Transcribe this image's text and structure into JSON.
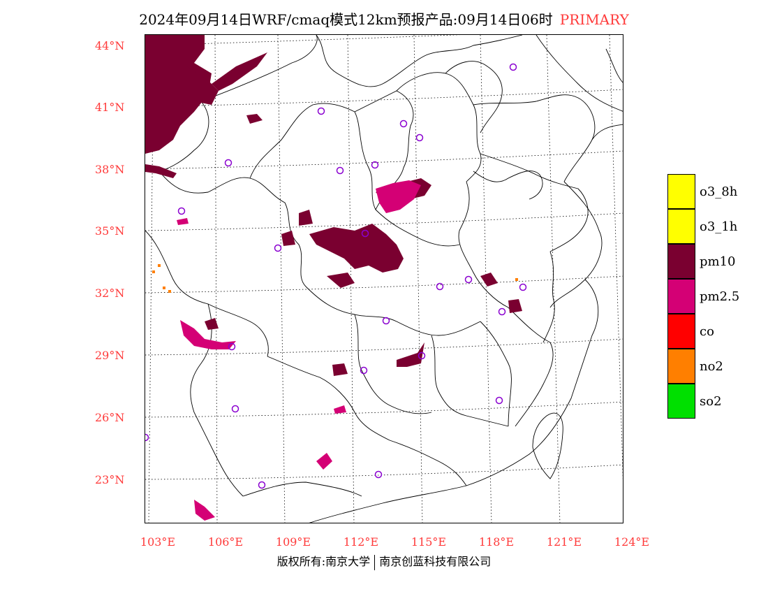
{
  "title": {
    "main": "2024年09月14日WRF/cmaq模式12km预报产品:09月14日06时",
    "tag": "PRIMARY"
  },
  "axes": {
    "latitude_labels": [
      "44°N",
      "41°N",
      "38°N",
      "35°N",
      "32°N",
      "29°N",
      "26°N",
      "23°N"
    ],
    "longitude_labels": [
      "103°E",
      "106°E",
      "109°E",
      "112°E",
      "115°E",
      "118°E",
      "121°E",
      "124°E"
    ]
  },
  "legend": {
    "items": [
      {
        "label": "o3_8h",
        "color": "#ffff00"
      },
      {
        "label": "o3_1h",
        "color": "#ffff00"
      },
      {
        "label": "pm10",
        "color": "#7a0030"
      },
      {
        "label": "pm2.5",
        "color": "#d40075"
      },
      {
        "label": "co",
        "color": "#ff0000"
      },
      {
        "label": "no2",
        "color": "#ff7f00"
      },
      {
        "label": "so2",
        "color": "#00e000"
      }
    ]
  },
  "footer": {
    "left": "版权所有:南京大学",
    "right": "南京创蓝科技有限公司"
  },
  "colors": {
    "pm10": "#7a0030",
    "pm25": "#d40075",
    "no2": "#ff7f00",
    "station": "#8a00d0",
    "label": "#ff3a3a"
  }
}
